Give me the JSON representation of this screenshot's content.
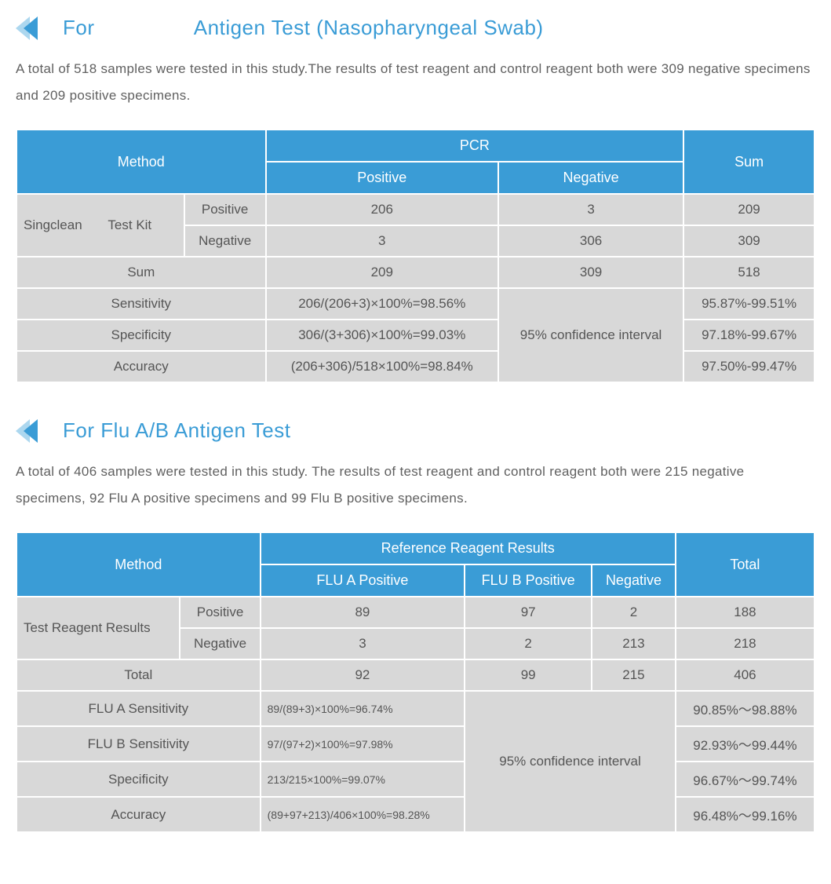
{
  "colors": {
    "header_bg": "#3a9cd6",
    "header_text": "#ffffff",
    "cell_bg": "#d8d8d8",
    "cell_text": "#555555",
    "heading_text": "#3a9cd6",
    "body_text": "#606060",
    "border": "#ffffff"
  },
  "section1": {
    "heading_prefix": "For",
    "heading_main": "Antigen Test (Nasopharyngeal Swab)",
    "description": "A total of 518 samples were tested in this study.The results of test reagent and control reagent both were 309 negative specimens and 209 positive specimens.",
    "table": {
      "h_method": "Method",
      "h_pcr": "PCR",
      "h_sum": "Sum",
      "h_positive": "Positive",
      "h_negative": "Negative",
      "kit_label": "Singclean       Test Kit",
      "r_positive": "Positive",
      "r_negative": "Negative",
      "r_sum": "Sum",
      "r_sensitivity": "Sensitivity",
      "r_specificity": "Specificity",
      "r_accuracy": "Accuracy",
      "v_pos_pos": "206",
      "v_pos_neg": "3",
      "v_pos_sum": "209",
      "v_neg_pos": "3",
      "v_neg_neg": "306",
      "v_neg_sum": "309",
      "v_sum_pos": "209",
      "v_sum_neg": "309",
      "v_sum_sum": "518",
      "v_sens_calc": "206/(206+3)×100%=98.56%",
      "v_spec_calc": "306/(3+306)×100%=99.03%",
      "v_acc_calc": "(206+306)/518×100%=98.84%",
      "v_ci_label": "95% confidence interval",
      "v_sens_ci": "95.87%-99.51%",
      "v_spec_ci": "97.18%-99.67%",
      "v_acc_ci": "97.50%-99.47%"
    }
  },
  "section2": {
    "heading": "For Flu A/B Antigen Test",
    "description": "A total of 406 samples were tested in this study. The results of test reagent and control reagent both were 215 negative specimens, 92 Flu A positive specimens and 99 Flu B positive specimens.",
    "table": {
      "h_method": "Method",
      "h_ref": "Reference Reagent Results",
      "h_total": "Total",
      "h_flua": "FLU A Positive",
      "h_flub": "FLU B Positive",
      "h_neg": "Negative",
      "kit_label": "Test Reagent Results",
      "r_positive": "Positive",
      "r_negative": "Negative",
      "r_total": "Total",
      "r_flua_sens": "FLU A Sensitivity",
      "r_flub_sens": "FLU B Sensitivity",
      "r_specificity": "Specificity",
      "r_accuracy": "Accuracy",
      "v_pos_a": "89",
      "v_pos_b": "97",
      "v_pos_n": "2",
      "v_pos_t": "188",
      "v_neg_a": "3",
      "v_neg_b": "2",
      "v_neg_n": "213",
      "v_neg_t": "218",
      "v_tot_a": "92",
      "v_tot_b": "99",
      "v_tot_n": "215",
      "v_tot_t": "406",
      "v_flua_calc": "89/(89+3)×100%=96.74%",
      "v_flub_calc": "97/(97+2)×100%=97.98%",
      "v_spec_calc": "213/215×100%=99.07%",
      "v_acc_calc": "(89+97+213)/406×100%=98.28%",
      "v_ci_label": "95% confidence interval",
      "v_flua_ci": "90.85%～98.88%",
      "v_flub_ci": "92.93%～99.44%",
      "v_spec_ci": "96.67%～99.74%",
      "v_acc_ci": "96.48%～99.16%"
    }
  }
}
